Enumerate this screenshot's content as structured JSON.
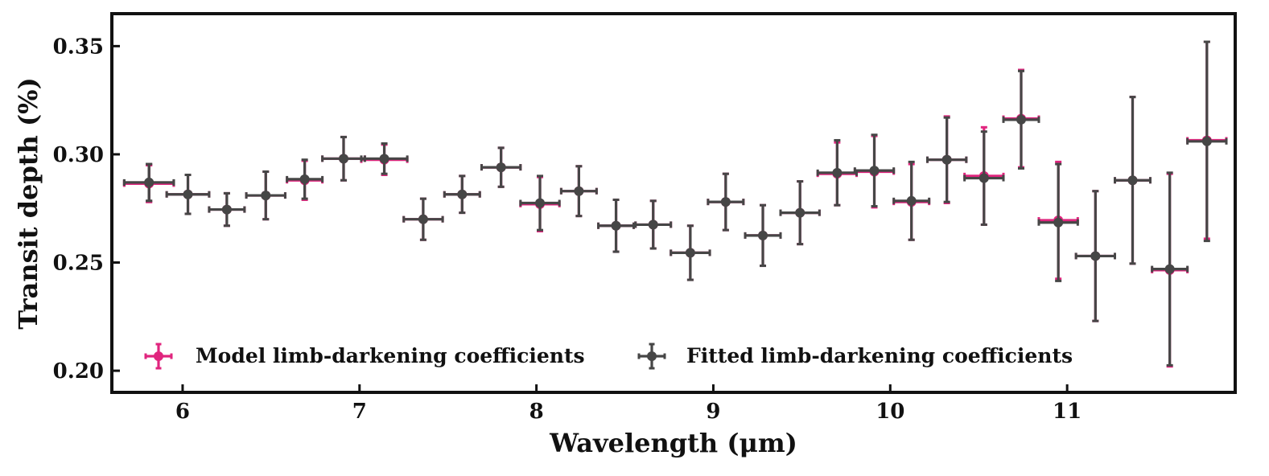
{
  "chart_data": {
    "type": "scatter",
    "xlabel": "Wavelength (μm)",
    "ylabel": "Transit depth (%)",
    "xlim": [
      5.6,
      11.95
    ],
    "ylim": [
      0.19,
      0.365
    ],
    "xticks": [
      6,
      7,
      8,
      9,
      10,
      11
    ],
    "yticks": [
      0.2,
      0.25,
      0.3,
      0.35
    ],
    "xtick_labels": [
      "6",
      "7",
      "8",
      "9",
      "10",
      "11"
    ],
    "ytick_labels": [
      "0.20",
      "0.25",
      "0.30",
      "0.35"
    ],
    "legend_position": "lower-left",
    "series": [
      {
        "name": "Model limb-darkening coefficients",
        "color": "#e0257e",
        "x": [
          5.81,
          5.81,
          6.03,
          6.25,
          6.47,
          6.69,
          6.91,
          7.14,
          7.36,
          7.58,
          7.8,
          8.02,
          8.24,
          8.45,
          8.66,
          8.87,
          9.07,
          9.28,
          9.49,
          9.7,
          9.91,
          10.12,
          10.32,
          10.53,
          10.74,
          10.95,
          11.16,
          11.37,
          11.58,
          11.79
        ],
        "xerr": [
          0.14,
          0.14,
          0.12,
          0.1,
          0.11,
          0.1,
          0.12,
          0.13,
          0.11,
          0.1,
          0.11,
          0.11,
          0.1,
          0.1,
          0.1,
          0.11,
          0.1,
          0.1,
          0.11,
          0.11,
          0.11,
          0.1,
          0.11,
          0.11,
          0.1,
          0.11,
          0.11,
          0.1,
          0.1,
          0.11
        ],
        "y": [
          0.2865,
          0.2865,
          0.2815,
          0.2745,
          0.281,
          0.288,
          0.298,
          0.2975,
          0.27,
          0.2815,
          0.294,
          0.277,
          0.283,
          0.267,
          0.2675,
          0.2545,
          0.278,
          0.2625,
          0.273,
          0.291,
          0.292,
          0.278,
          0.2975,
          0.29,
          0.3165,
          0.2695,
          0.253,
          0.288,
          0.2465,
          0.3065
        ],
        "yerr": [
          0.0085,
          0.0085,
          0.009,
          0.0075,
          0.011,
          0.009,
          0.01,
          0.007,
          0.0095,
          0.0085,
          0.009,
          0.0125,
          0.0115,
          0.012,
          0.011,
          0.0125,
          0.013,
          0.014,
          0.0145,
          0.0145,
          0.0165,
          0.0175,
          0.02,
          0.0225,
          0.0225,
          0.027,
          0.03,
          0.0385,
          0.0445,
          0.0455
        ]
      },
      {
        "name": "Fitted limb-darkening coefficients",
        "color": "#464646",
        "x": [
          5.81,
          5.81,
          6.03,
          6.25,
          6.47,
          6.69,
          6.91,
          7.14,
          7.36,
          7.58,
          7.8,
          8.02,
          8.24,
          8.45,
          8.66,
          8.87,
          9.07,
          9.28,
          9.49,
          9.7,
          9.91,
          10.12,
          10.32,
          10.53,
          10.74,
          10.95,
          11.16,
          11.37,
          11.58,
          11.79
        ],
        "xerr": [
          0.14,
          0.14,
          0.12,
          0.1,
          0.11,
          0.1,
          0.12,
          0.13,
          0.11,
          0.1,
          0.11,
          0.11,
          0.1,
          0.1,
          0.1,
          0.11,
          0.1,
          0.1,
          0.11,
          0.11,
          0.11,
          0.1,
          0.11,
          0.11,
          0.1,
          0.11,
          0.11,
          0.1,
          0.1,
          0.11
        ],
        "y": [
          0.287,
          0.287,
          0.2815,
          0.2745,
          0.281,
          0.2885,
          0.298,
          0.298,
          0.27,
          0.2815,
          0.294,
          0.2775,
          0.283,
          0.267,
          0.2675,
          0.2545,
          0.278,
          0.2625,
          0.273,
          0.2915,
          0.2925,
          0.2785,
          0.2975,
          0.289,
          0.316,
          0.2685,
          0.253,
          0.288,
          0.247,
          0.306
        ],
        "yerr": [
          0.0085,
          0.0085,
          0.009,
          0.0075,
          0.011,
          0.009,
          0.01,
          0.007,
          0.0095,
          0.0085,
          0.009,
          0.0125,
          0.0115,
          0.012,
          0.011,
          0.0125,
          0.013,
          0.014,
          0.0145,
          0.015,
          0.0165,
          0.018,
          0.0195,
          0.0215,
          0.0225,
          0.027,
          0.03,
          0.0385,
          0.0445,
          0.046
        ]
      }
    ]
  }
}
